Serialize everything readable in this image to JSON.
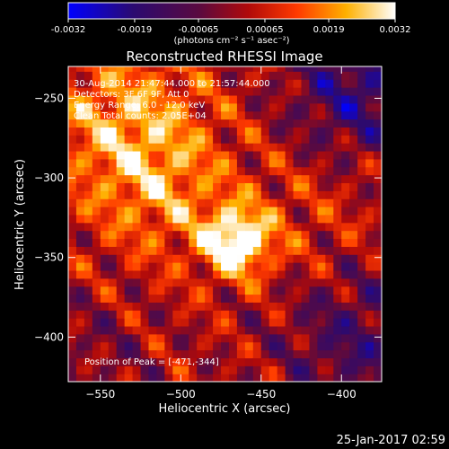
{
  "colorbar": {
    "tick_labels": [
      "-0.0032",
      "-0.0019",
      "-0.00065",
      "0.00065",
      "0.0019",
      "0.0032"
    ],
    "tick_values": [
      -0.0032,
      -0.0019,
      -0.00065,
      0.00065,
      0.0019,
      0.0032
    ],
    "range": [
      -0.0032,
      0.0032
    ],
    "units_label": "(photons cm⁻² s⁻¹ asec⁻²)"
  },
  "chart_data": {
    "type": "heatmap",
    "title": "Reconstructed RHESSI Image",
    "xlabel": "Heliocentric X (arcsec)",
    "ylabel": "Heliocentric Y (arcsec)",
    "xlim": [
      -570,
      -375
    ],
    "ylim": [
      -428,
      -230
    ],
    "x_ticks": [
      -550,
      -500,
      -450,
      -400
    ],
    "x_tick_labels": [
      "−550",
      "−500",
      "−450",
      "−400"
    ],
    "y_ticks": [
      -400,
      -350,
      -300,
      -250
    ],
    "y_tick_labels": [
      "−400",
      "−350",
      "−300",
      "−250"
    ],
    "colormap": "black-blue-purple-red-orange-yellow-white",
    "value_range": [
      -0.0032,
      0.0032
    ],
    "peak": [
      -471,
      -344
    ],
    "sources": [
      {
        "x": -465,
        "y": -340,
        "amp": 0.0032,
        "w": 15
      },
      {
        "x": -535,
        "y": -265,
        "amp": 0.0018,
        "w": 35
      },
      {
        "x": -510,
        "y": -310,
        "amp": 0.0012,
        "w": 30
      },
      {
        "x": -420,
        "y": -330,
        "amp": 0.0006,
        "w": 35
      },
      {
        "x": -390,
        "y": -245,
        "amp": -0.002,
        "w": 30
      },
      {
        "x": -390,
        "y": -400,
        "amp": -0.0015,
        "w": 35
      },
      {
        "x": -555,
        "y": -410,
        "amp": -0.0006,
        "w": 25
      }
    ],
    "annotations": {
      "time": "30-Aug-2014 21:47:44.000 to 21:57:44.000",
      "detectors": "Detectors: 3F 6F 9F, Att 0",
      "energy": "Energy Range: 6.0 - 12.0 keV",
      "clean": "Clean    Total counts: 2.05E+04",
      "peak_text": "Position of Peak = [-471,-344]"
    }
  },
  "footer": {
    "timestamp": "25-Jan-2017 02:59"
  }
}
